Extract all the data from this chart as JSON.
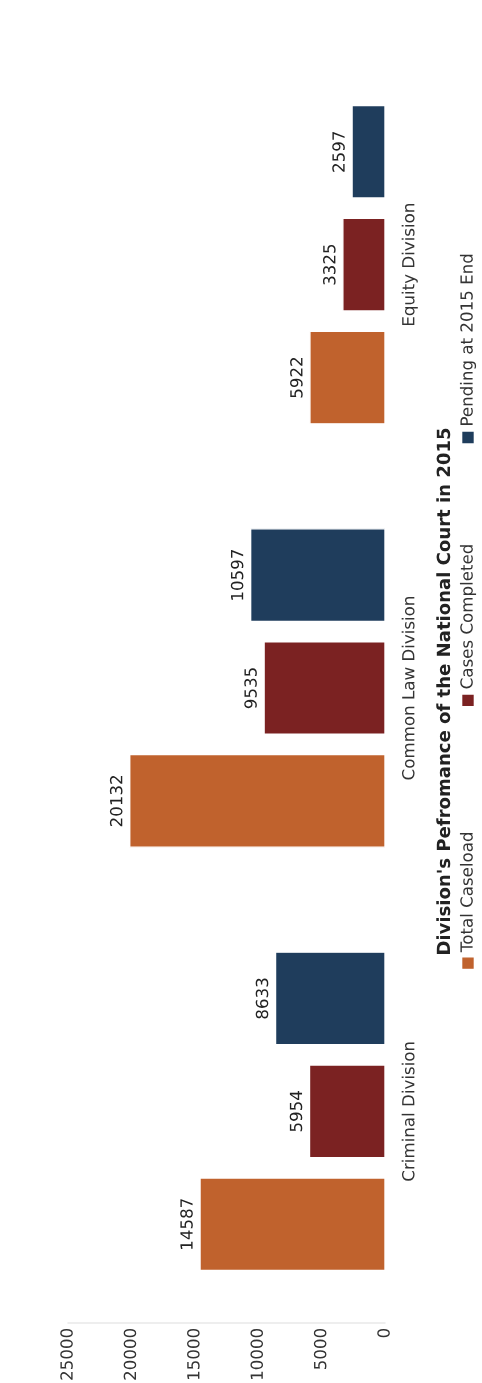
{
  "chart_data": {
    "type": "bar",
    "orientation": "horizontal",
    "title": "Division's Pefromance of the National Court in 2015",
    "categories": [
      "Equity Division",
      "Common Law Division",
      "Criminal Division"
    ],
    "series": [
      {
        "name": "Total Caseload",
        "color": "#c0622d",
        "values": [
          5922,
          20132,
          14587
        ]
      },
      {
        "name": "Cases Completed",
        "color": "#7b2222",
        "values": [
          3325,
          9535,
          5954
        ]
      },
      {
        "name": "Pending at 2015 End",
        "color": "#1f3d5c",
        "values": [
          2597,
          10597,
          8633
        ]
      }
    ],
    "xlim": [
      25000,
      0
    ],
    "xticks": [
      0,
      5000,
      10000,
      15000,
      20000,
      25000
    ],
    "data_labels": true,
    "grid": false,
    "legend": "right"
  }
}
